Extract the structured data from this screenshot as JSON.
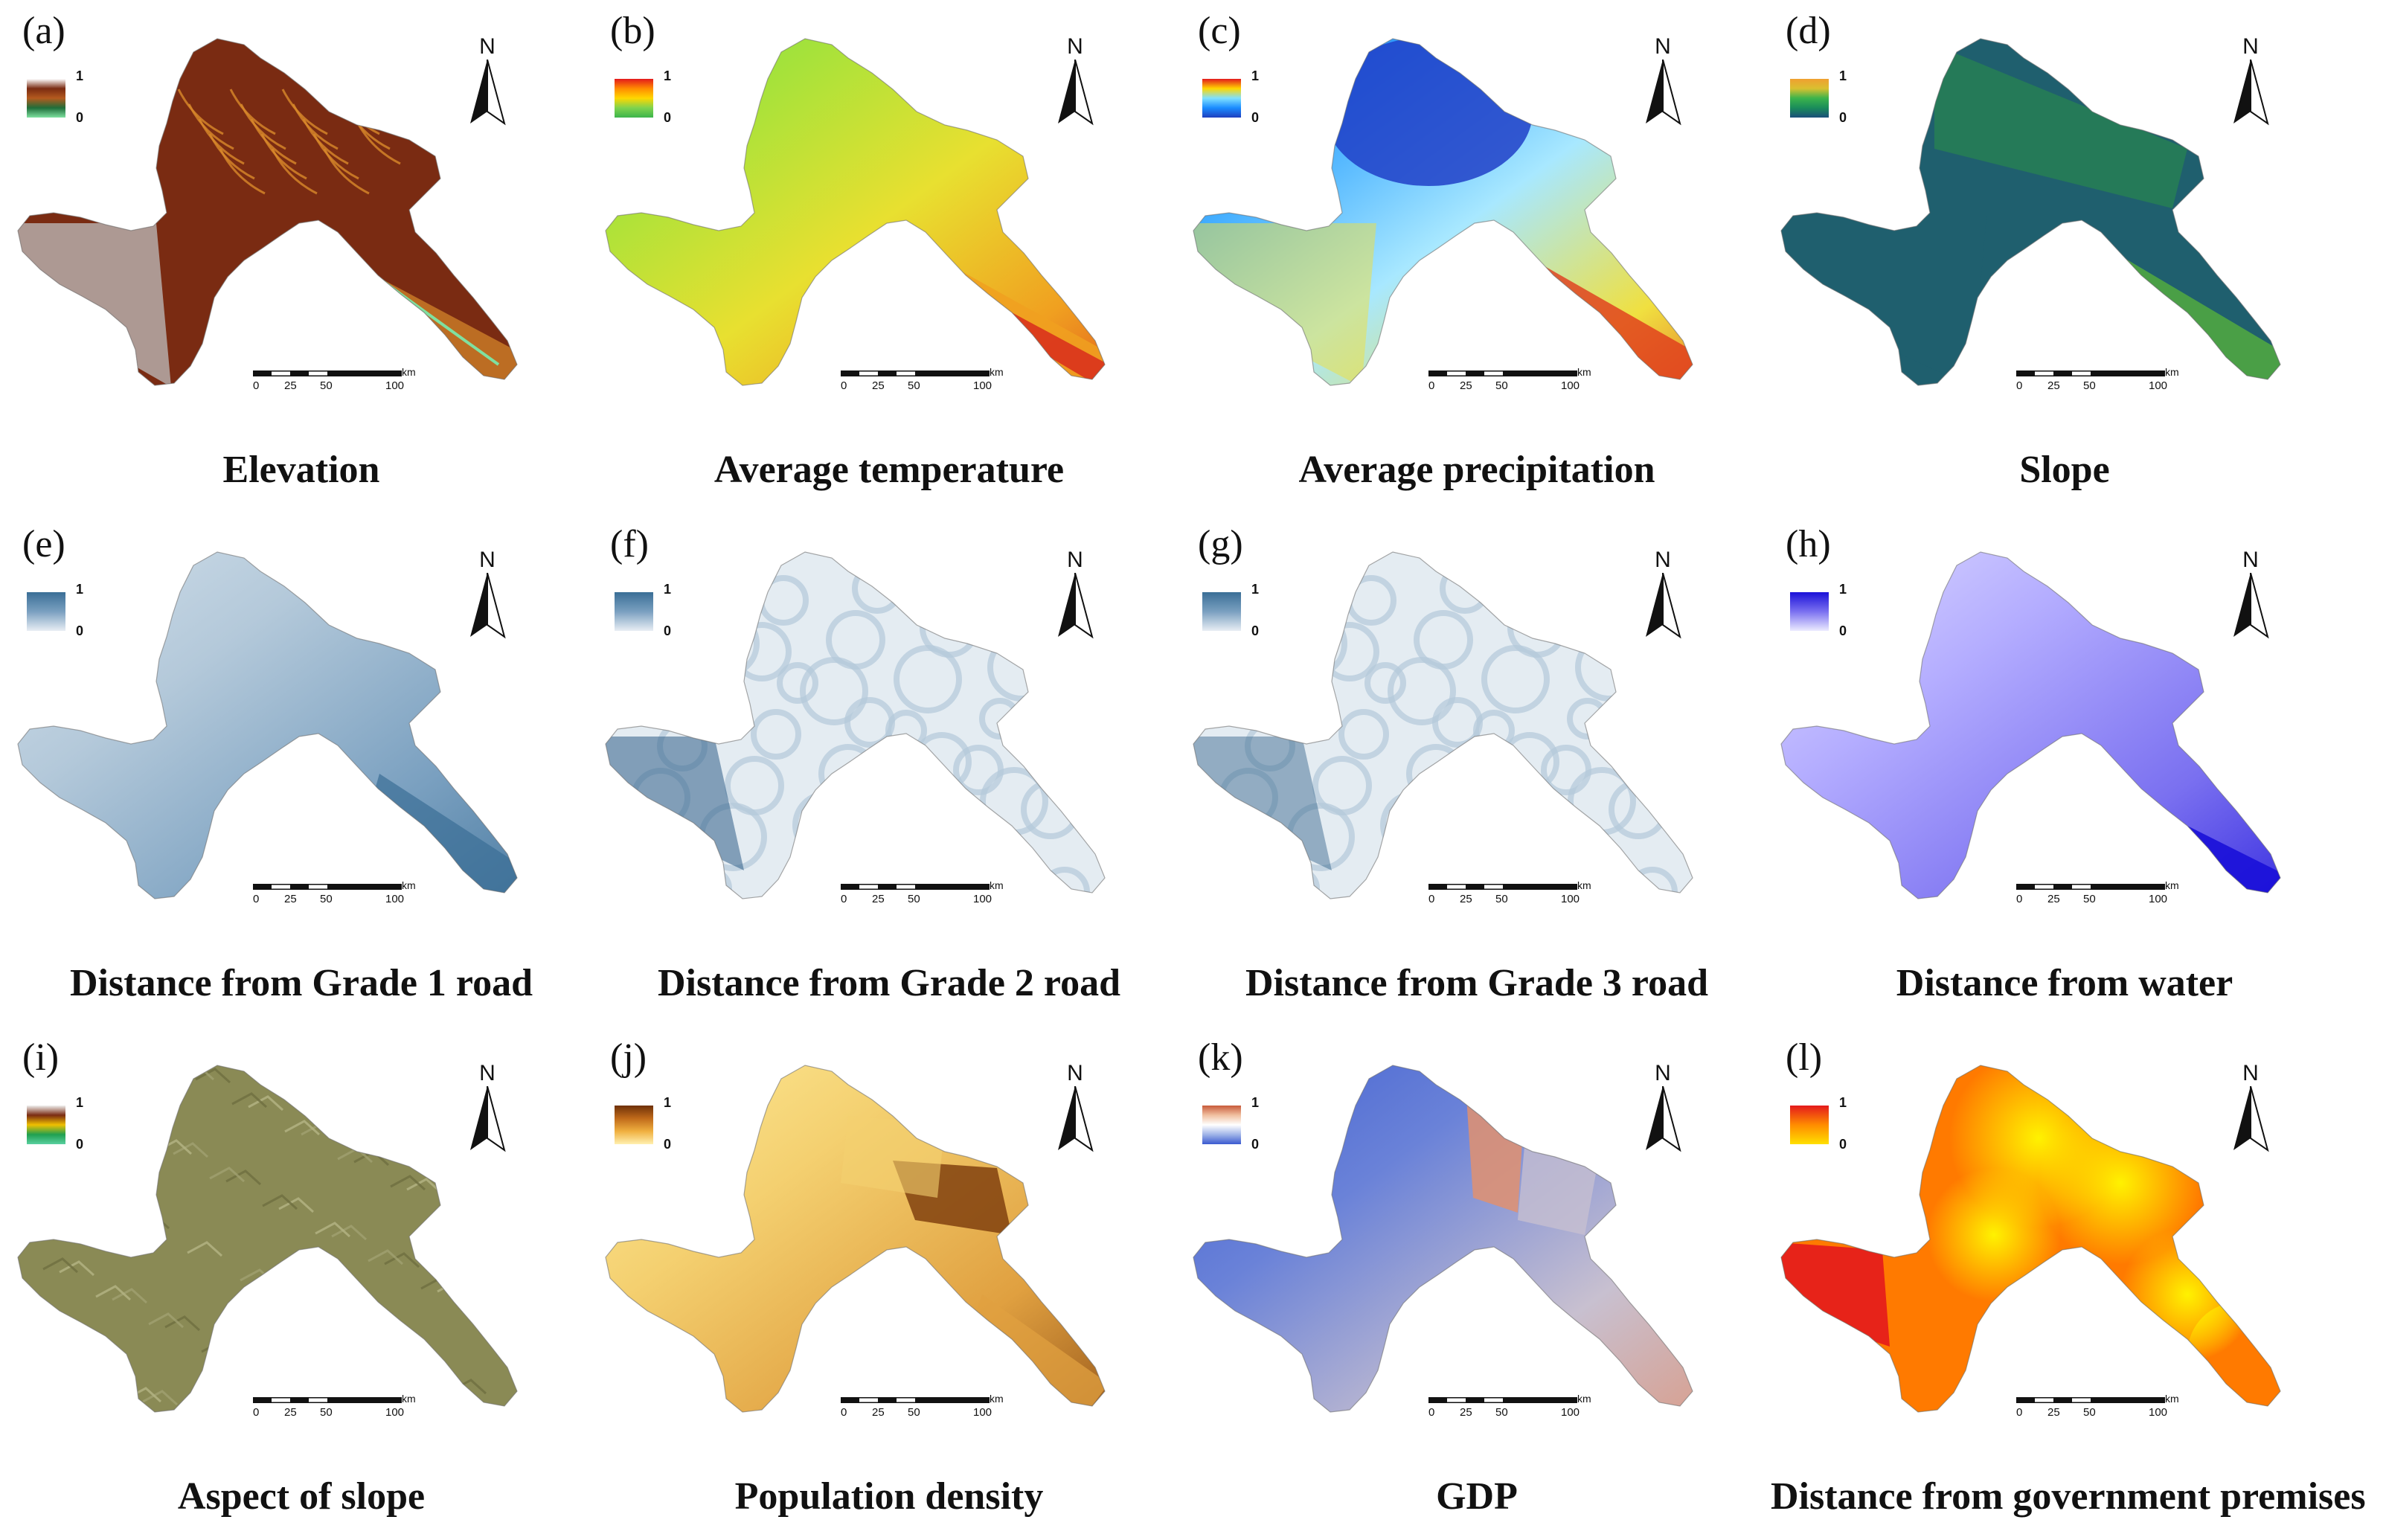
{
  "north_label": "N",
  "legend_hi": "1",
  "legend_lo": "0",
  "scale": {
    "unit": "km",
    "ticks": [
      "0",
      "25",
      "50",
      "100"
    ]
  },
  "panels": [
    {
      "letter": "(a)",
      "caption": "Elevation",
      "style": "elevation",
      "legend_colors": [
        "#ffffff",
        "#7a2b12",
        "#b45a1e",
        "#1f6e3a",
        "#7fe0a0"
      ],
      "fill_colors": [
        "#7a2b12",
        "#a8441b",
        "#d98a2b",
        "#bfbfbf"
      ]
    },
    {
      "letter": "(b)",
      "caption": "Average temperature",
      "style": "temperature",
      "legend_colors": [
        "#e41a1c",
        "#ff8c00",
        "#ffd700",
        "#7fd34e",
        "#3cb44b"
      ],
      "fill_colors": [
        "#6ee04a",
        "#a8e23a",
        "#e8e030",
        "#f0a020",
        "#d9321c"
      ]
    },
    {
      "letter": "(c)",
      "caption": "Average precipitation",
      "style": "precipitation",
      "legend_colors": [
        "#e41a1c",
        "#ffd700",
        "#7fe0ff",
        "#1a8cff",
        "#1f3fbf"
      ],
      "fill_colors": [
        "#2040c8",
        "#36a6ff",
        "#a8e8ff",
        "#f0e040",
        "#e03a1c"
      ]
    },
    {
      "letter": "(d)",
      "caption": "Slope",
      "style": "slope",
      "legend_colors": [
        "#f0a030",
        "#d9c030",
        "#3cb44b",
        "#1a8c5a",
        "#1a4f7a"
      ],
      "fill_colors": [
        "#1f5f6e",
        "#2a8c4a",
        "#5ab43a",
        "#a8c040"
      ]
    },
    {
      "letter": "(e)",
      "caption": "Distance from Grade 1 road",
      "style": "grade1",
      "legend_colors": [
        "#3a6e96",
        "#7aa0c0",
        "#e8eef4"
      ],
      "fill_colors": [
        "#d8e4ee",
        "#b4c9da",
        "#7aa0c0",
        "#3a6e96"
      ]
    },
    {
      "letter": "(f)",
      "caption": "Distance from Grade 2 road",
      "style": "grade2",
      "legend_colors": [
        "#3a6e96",
        "#7aa0c0",
        "#e8eef4"
      ],
      "fill_colors": [
        "#e4ecf2",
        "#b4c9da",
        "#7aa0c0",
        "#2f5f88"
      ]
    },
    {
      "letter": "(g)",
      "caption": "Distance from Grade 3 road",
      "style": "grade3",
      "legend_colors": [
        "#3a6e96",
        "#7aa0c0",
        "#e8eef4"
      ],
      "fill_colors": [
        "#e4ecf2",
        "#b4c9da",
        "#7aa0c0",
        "#2f5f88"
      ]
    },
    {
      "letter": "(h)",
      "caption": "Distance from water",
      "style": "water",
      "legend_colors": [
        "#1a10d8",
        "#7a70f0",
        "#ecebff"
      ],
      "fill_colors": [
        "#e6e4ff",
        "#b4adff",
        "#7a70f0",
        "#1a10d8"
      ]
    },
    {
      "letter": "(i)",
      "caption": "Aspect of slope",
      "style": "aspect",
      "legend_colors": [
        "#f0f0f0",
        "#7a2b12",
        "#f0c000",
        "#1fa050",
        "#5ad0a0"
      ],
      "fill_colors": [
        "#8a8a55",
        "#a0a070",
        "#6e6e40",
        "#b4b484"
      ]
    },
    {
      "letter": "(j)",
      "caption": "Population density",
      "style": "population",
      "legend_colors": [
        "#6e3008",
        "#c06a1a",
        "#f0b040",
        "#fff0b0"
      ],
      "fill_colors": [
        "#fff0a0",
        "#f4d070",
        "#e0a040",
        "#7a3a0a"
      ]
    },
    {
      "letter": "(k)",
      "caption": "GDP",
      "style": "gdp",
      "legend_colors": [
        "#c85a3a",
        "#f0c0a0",
        "#ffffff",
        "#a0b4e8",
        "#3a5ad0"
      ],
      "fill_colors": [
        "#3a5ad0",
        "#6a82d8",
        "#c8c0d0",
        "#e09070"
      ]
    },
    {
      "letter": "(l)",
      "caption": "Distance from government premises",
      "style": "government",
      "legend_colors": [
        "#e41a1c",
        "#ff8c00",
        "#ffe000"
      ],
      "fill_colors": [
        "#ffe000",
        "#ffb000",
        "#ff7a00",
        "#e41a1c"
      ]
    }
  ]
}
